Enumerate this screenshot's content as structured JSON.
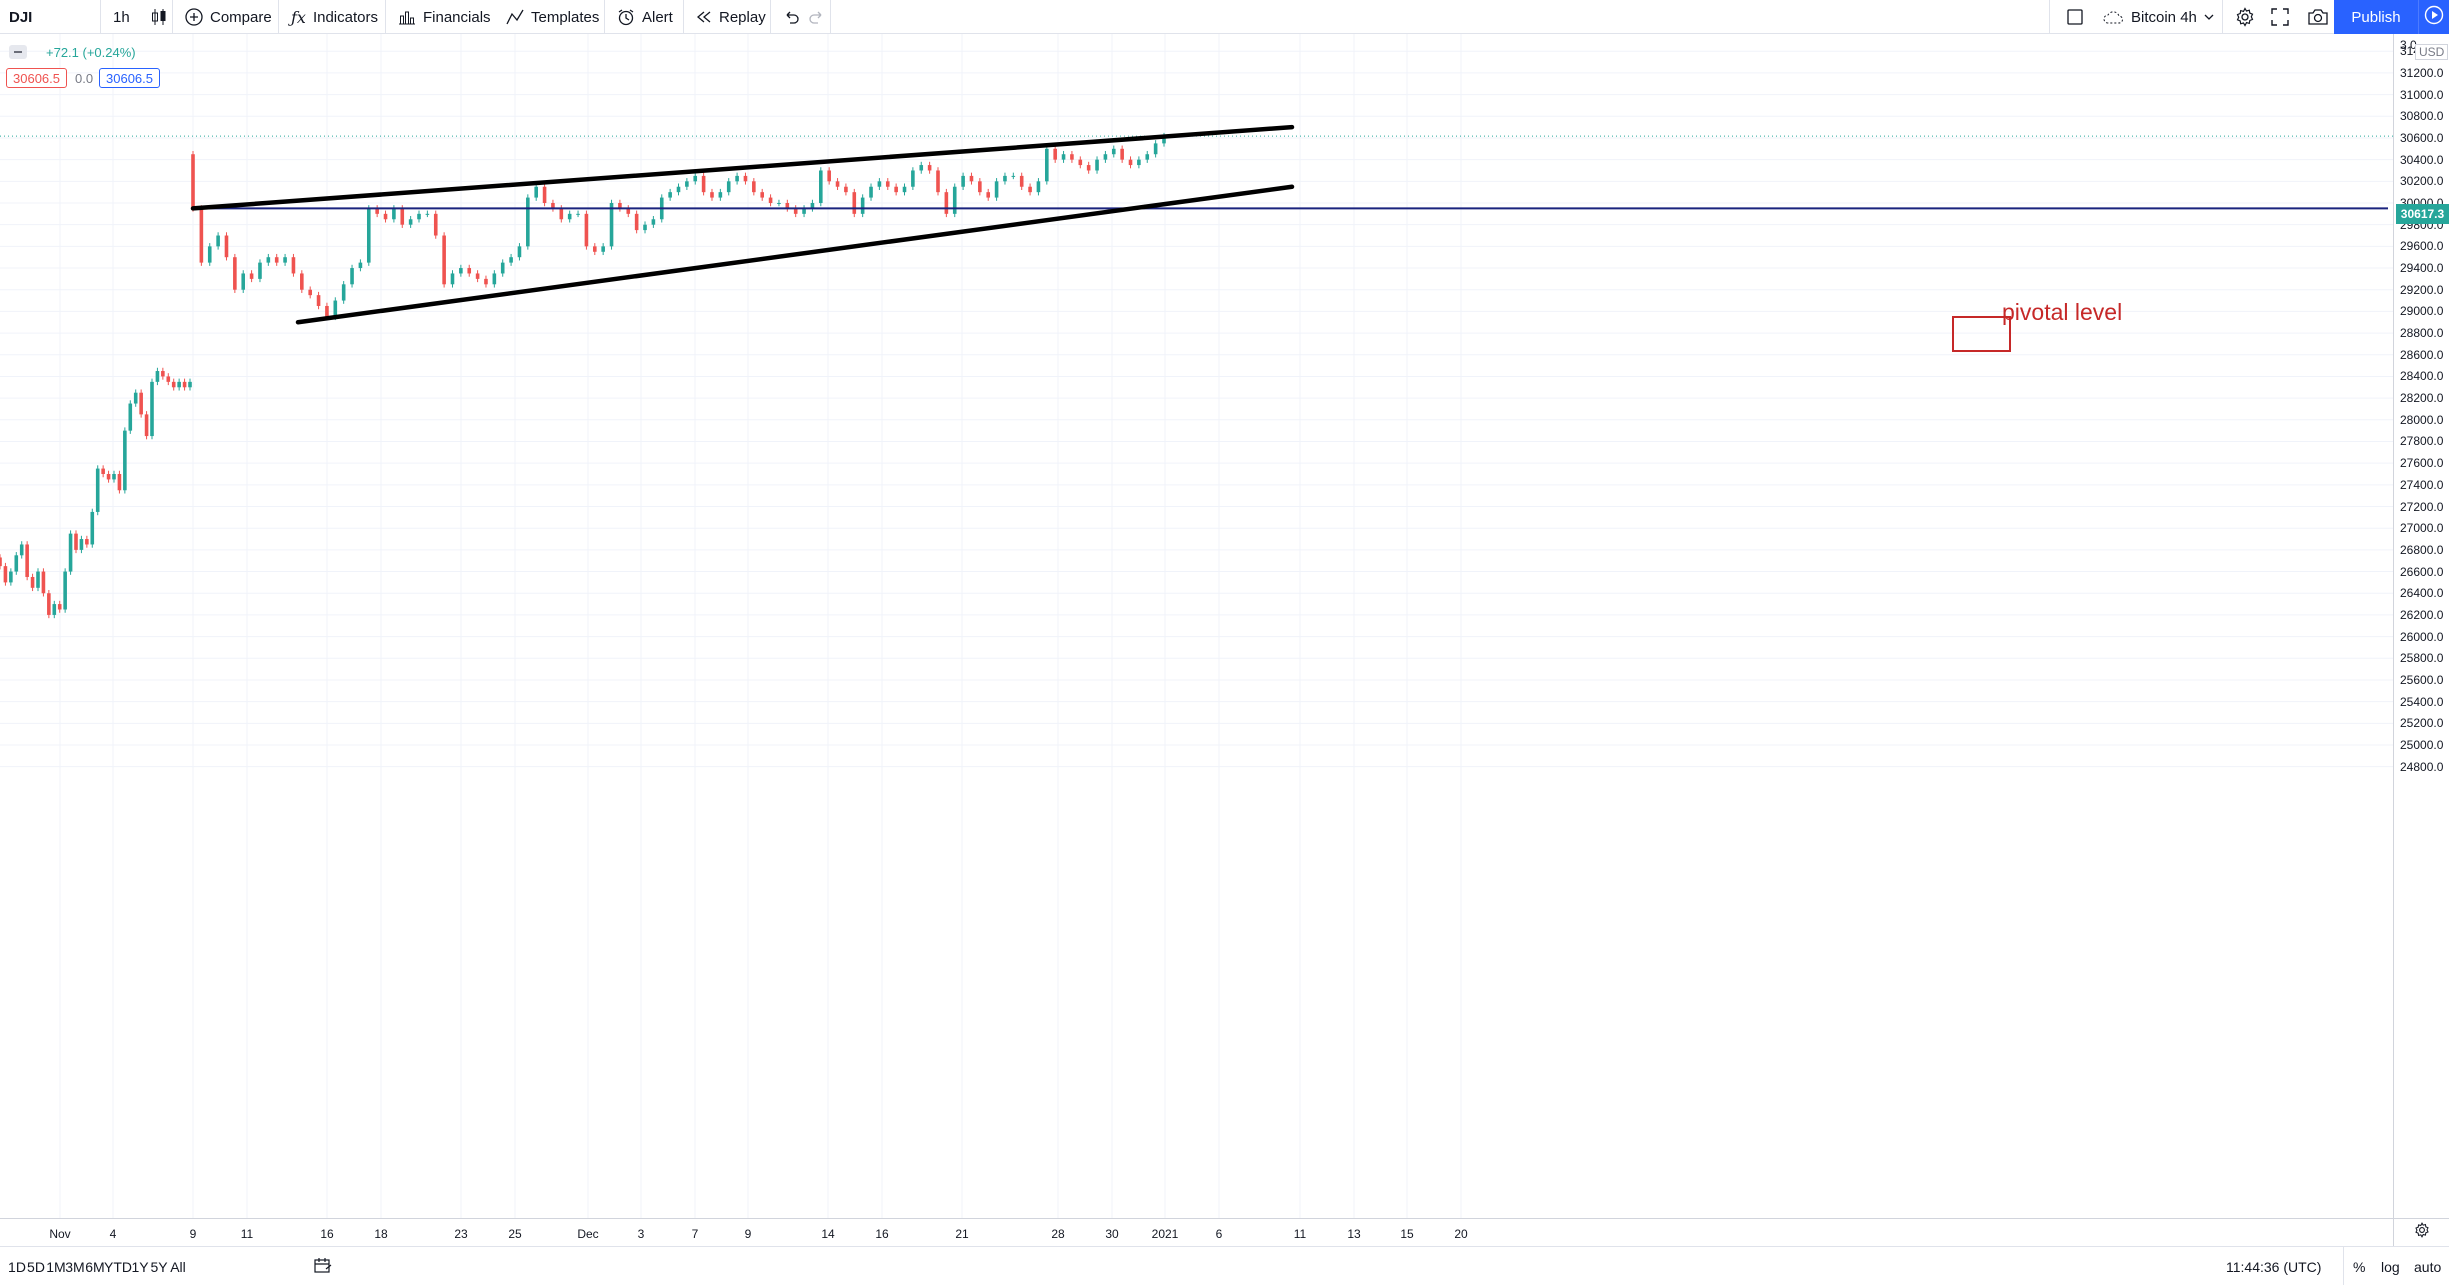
{
  "toolbar": {
    "symbol": "DJI",
    "interval": "1h",
    "compare": "Compare",
    "indicators": "Indicators",
    "financials": "Financials",
    "templates": "Templates",
    "alert": "Alert",
    "replay": "Replay",
    "layout_name": "Bitcoin 4h",
    "publish": "Publish"
  },
  "legend": {
    "change": "+72.1 (+0.24%)",
    "sell_price": "30606.5",
    "spread": "0.0",
    "buy_price": "30606.5"
  },
  "price_axis": {
    "currency": "USD",
    "top_label": "3 0",
    "ticks": [
      "31400.0",
      "31200.0",
      "31000.0",
      "30800.0",
      "30600.0",
      "30400.0",
      "30200.0",
      "30000.0",
      "29800.0",
      "29600.0",
      "29400.0",
      "29200.0",
      "29000.0",
      "28800.0",
      "28600.0",
      "28400.0",
      "28200.0",
      "28000.0",
      "27800.0",
      "27600.0",
      "27400.0",
      "27200.0",
      "27000.0",
      "26800.0",
      "26600.0",
      "26400.0",
      "26200.0",
      "26000.0",
      "25800.0",
      "25600.0",
      "25400.0",
      "25200.0",
      "25000.0",
      "24800.0"
    ],
    "last_price": "30617.3"
  },
  "time_axis": {
    "ticks": [
      "Nov",
      "4",
      "9",
      "11",
      "16",
      "18",
      "23",
      "25",
      "Dec",
      "3",
      "7",
      "9",
      "14",
      "16",
      "21",
      "28",
      "30",
      "2021",
      "6",
      "11",
      "13",
      "15",
      "20"
    ]
  },
  "annotation": {
    "label": "pivotal level"
  },
  "bottom": {
    "ranges": [
      "1D",
      "5D",
      "1M",
      "3M",
      "6M",
      "YTD",
      "1Y",
      "5Y",
      "All"
    ],
    "clock": "11:44:36 (UTC)",
    "percent": "%",
    "log": "log",
    "auto": "auto"
  },
  "colors": {
    "up": "#26a69a",
    "down": "#ef5350",
    "pivot_line": "#1a237e",
    "trendline": "#000000",
    "annotation": "#c62828",
    "accent": "#2962ff"
  },
  "chart_data": {
    "type": "candlestick",
    "symbol": "DJI",
    "interval": "1h",
    "ylim": [
      24700,
      31500
    ],
    "last_price": 30617.3,
    "pivotal_level": 29950,
    "segments": [
      {
        "start": "Oct 29",
        "end": "Nov 6",
        "closes": [
          26650,
          26500,
          26600,
          26750,
          26850,
          26550,
          26450,
          26600,
          26400,
          26200,
          26300,
          26250,
          26600,
          26950,
          26800,
          26900,
          26850,
          27150,
          27550,
          27500,
          27450,
          27500,
          27350,
          27900,
          28150,
          28250,
          28050,
          27850,
          28350,
          28450,
          28400,
          28350,
          28300,
          28350,
          28300,
          28350
        ]
      },
      {
        "start": "Nov 9",
        "end": "Dec 31",
        "closes": [
          29950,
          29450,
          29600,
          29700,
          29500,
          29200,
          29350,
          29300,
          29450,
          29500,
          29450,
          29500,
          29350,
          29200,
          29150,
          29050,
          28950,
          29100,
          29250,
          29400,
          29450,
          29950,
          29900,
          29850,
          29950,
          29800,
          29850,
          29900,
          29900,
          29700,
          29250,
          29350,
          29400,
          29350,
          29300,
          29250,
          29350,
          29450,
          29500,
          29600,
          30050,
          30150,
          30000,
          29950,
          29850,
          29900,
          29900,
          29600,
          29550,
          29600,
          30000,
          29950,
          29900,
          29750,
          29800,
          29850,
          30050,
          30100,
          30150,
          30200,
          30250,
          30100,
          30050,
          30100,
          30200,
          30250,
          30200,
          30100,
          30050,
          30000,
          30000,
          29950,
          29900,
          29950,
          30000,
          30300,
          30200,
          30150,
          30100,
          29900,
          30050,
          30150,
          30200,
          30150,
          30100,
          30150,
          30300,
          30350,
          30300,
          30100,
          29900,
          30150,
          30250,
          30200,
          30100,
          30050,
          30200,
          30250,
          30250,
          30150,
          30100,
          30200,
          30500,
          30400,
          30450,
          30400,
          30350,
          30300,
          30400,
          30450,
          30500,
          30400,
          30350,
          30400,
          30450,
          30550,
          30617.3
        ]
      }
    ],
    "trendlines": [
      {
        "name": "upper",
        "from": [
          "Nov 9",
          29950
        ],
        "to": [
          "Jan 8",
          30700
        ]
      },
      {
        "name": "lower",
        "from": [
          "Nov 13",
          28900
        ],
        "to": [
          "Jan 8",
          30150
        ]
      }
    ]
  }
}
